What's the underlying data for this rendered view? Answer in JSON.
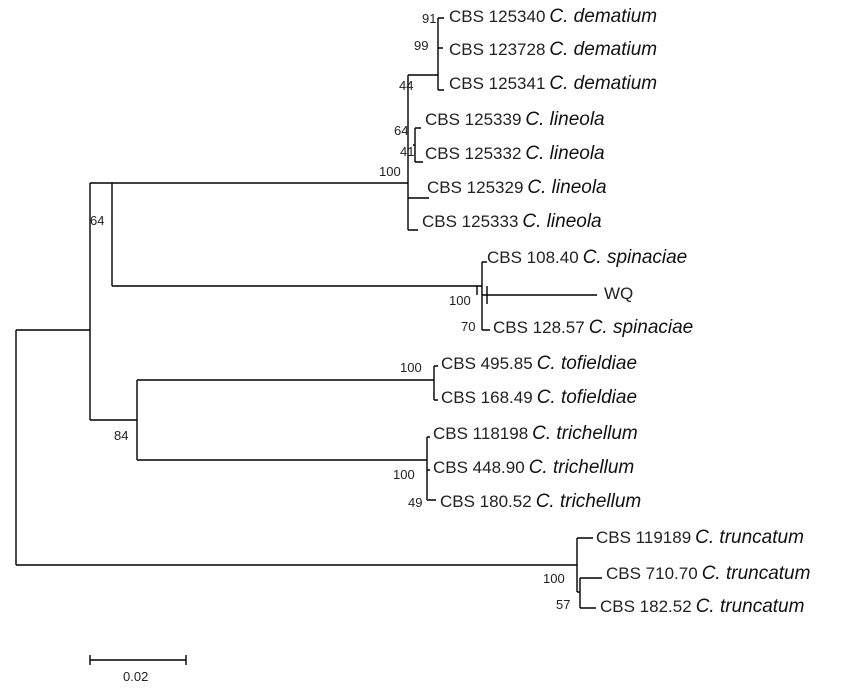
{
  "tree": {
    "taxa": [
      {
        "id": "t1",
        "accession": "CBS 125340",
        "species": "C. dematium"
      },
      {
        "id": "t2",
        "accession": "CBS 123728",
        "species": "C. dematium"
      },
      {
        "id": "t3",
        "accession": "CBS 125341",
        "species": "C. dematium"
      },
      {
        "id": "t4",
        "accession": "CBS 125339",
        "species": "C. lineola"
      },
      {
        "id": "t5",
        "accession": "CBS 125332",
        "species": "C. lineola"
      },
      {
        "id": "t6",
        "accession": "CBS 125329",
        "species": "C. lineola"
      },
      {
        "id": "t7",
        "accession": "CBS 125333",
        "species": "C. lineola"
      },
      {
        "id": "t8",
        "accession": "CBS 108.40",
        "species": "C. spinaciae"
      },
      {
        "id": "t9",
        "accession": "WQ",
        "species": ""
      },
      {
        "id": "t10",
        "accession": "CBS 128.57",
        "species": "C. spinaciae"
      },
      {
        "id": "t11",
        "accession": "CBS 495.85",
        "species": "C. tofieldiae"
      },
      {
        "id": "t12",
        "accession": "CBS 168.49",
        "species": "C. tofieldiae"
      },
      {
        "id": "t13",
        "accession": "CBS 118198",
        "species": "C. trichellum"
      },
      {
        "id": "t14",
        "accession": "CBS 448.90",
        "species": "C. trichellum"
      },
      {
        "id": "t15",
        "accession": "CBS 180.52",
        "species": "C. trichellum"
      },
      {
        "id": "t16",
        "accession": "CBS 119189",
        "species": "C. truncatum"
      },
      {
        "id": "t17",
        "accession": "CBS 710.70",
        "species": "C. truncatum"
      },
      {
        "id": "t18",
        "accession": "CBS 182.52",
        "species": "C. truncatum"
      }
    ],
    "bootstrap": {
      "b91": "91",
      "b99": "99",
      "b44": "44",
      "b64a": "64",
      "b41": "41",
      "b100a": "100",
      "b64b": "64",
      "b100b": "100",
      "b70": "70",
      "b100c": "100",
      "b84": "84",
      "b100d": "100",
      "b49": "49",
      "b100e": "100",
      "b57": "57"
    },
    "scale_bar_label": "0.02"
  }
}
